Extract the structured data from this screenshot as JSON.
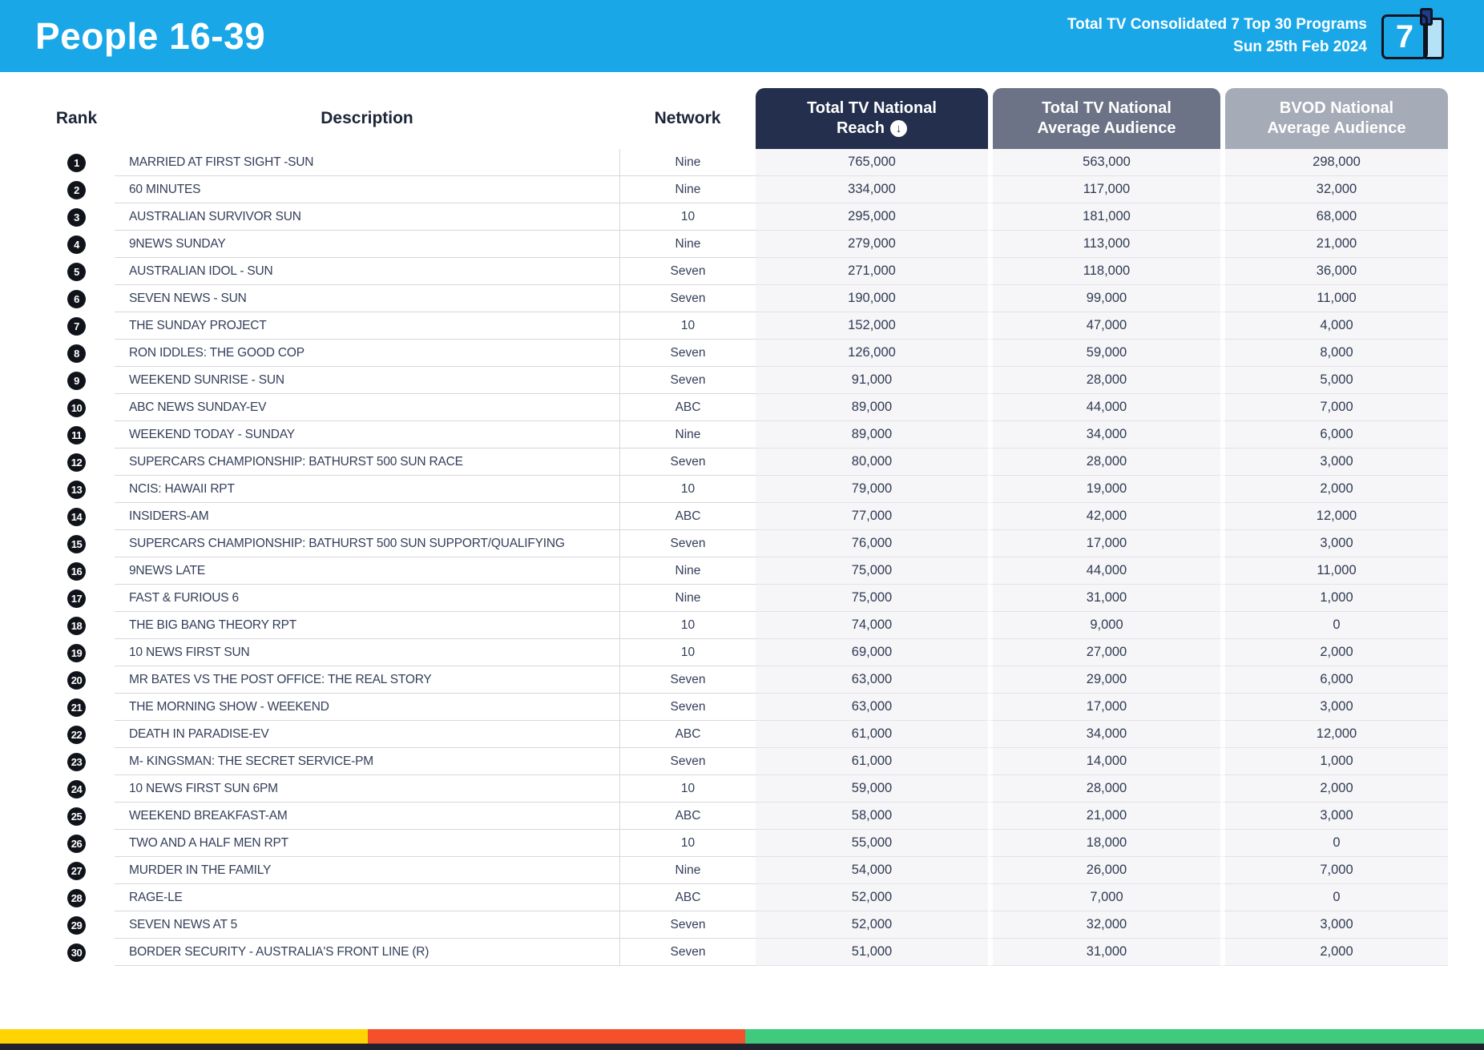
{
  "header": {
    "title": "People 16-39",
    "subtitle_line1": "Total TV Consolidated 7 Top 30 Programs",
    "subtitle_line2": "Sun 25th Feb 2024",
    "logo_number": "7",
    "banner_color": "#1AA7E8"
  },
  "table": {
    "column_labels": {
      "rank": "Rank",
      "description": "Description",
      "network": "Network"
    },
    "metric_headers": {
      "reach": {
        "line1": "Total TV National",
        "line2": "Reach",
        "color": "#242F4E",
        "sort_icon": "arrow-down-circle"
      },
      "avg": {
        "line1": "Total TV National",
        "line2": "Average Audience",
        "color": "#6C7386"
      },
      "bvod": {
        "line1": "BVOD National",
        "line2": "Average Audience",
        "color": "#A6ABB8"
      }
    },
    "rows": [
      {
        "rank": "1",
        "description": "MARRIED AT FIRST SIGHT -SUN",
        "network": "Nine",
        "reach": "765,000",
        "avg_audience": "563,000",
        "bvod": "298,000"
      },
      {
        "rank": "2",
        "description": "60 MINUTES",
        "network": "Nine",
        "reach": "334,000",
        "avg_audience": "117,000",
        "bvod": "32,000"
      },
      {
        "rank": "3",
        "description": "AUSTRALIAN SURVIVOR SUN",
        "network": "10",
        "reach": "295,000",
        "avg_audience": "181,000",
        "bvod": "68,000"
      },
      {
        "rank": "4",
        "description": "9NEWS SUNDAY",
        "network": "Nine",
        "reach": "279,000",
        "avg_audience": "113,000",
        "bvod": "21,000"
      },
      {
        "rank": "5",
        "description": "AUSTRALIAN IDOL - SUN",
        "network": "Seven",
        "reach": "271,000",
        "avg_audience": "118,000",
        "bvod": "36,000"
      },
      {
        "rank": "6",
        "description": "SEVEN NEWS - SUN",
        "network": "Seven",
        "reach": "190,000",
        "avg_audience": "99,000",
        "bvod": "11,000"
      },
      {
        "rank": "7",
        "description": "THE SUNDAY PROJECT",
        "network": "10",
        "reach": "152,000",
        "avg_audience": "47,000",
        "bvod": "4,000"
      },
      {
        "rank": "8",
        "description": "RON IDDLES: THE GOOD COP",
        "network": "Seven",
        "reach": "126,000",
        "avg_audience": "59,000",
        "bvod": "8,000"
      },
      {
        "rank": "9",
        "description": "WEEKEND SUNRISE - SUN",
        "network": "Seven",
        "reach": "91,000",
        "avg_audience": "28,000",
        "bvod": "5,000"
      },
      {
        "rank": "10",
        "description": "ABC NEWS SUNDAY-EV",
        "network": "ABC",
        "reach": "89,000",
        "avg_audience": "44,000",
        "bvod": "7,000"
      },
      {
        "rank": "11",
        "description": "WEEKEND TODAY - SUNDAY",
        "network": "Nine",
        "reach": "89,000",
        "avg_audience": "34,000",
        "bvod": "6,000"
      },
      {
        "rank": "12",
        "description": "SUPERCARS CHAMPIONSHIP: BATHURST 500 SUN RACE",
        "network": "Seven",
        "reach": "80,000",
        "avg_audience": "28,000",
        "bvod": "3,000"
      },
      {
        "rank": "13",
        "description": "NCIS: HAWAII RPT",
        "network": "10",
        "reach": "79,000",
        "avg_audience": "19,000",
        "bvod": "2,000"
      },
      {
        "rank": "14",
        "description": "INSIDERS-AM",
        "network": "ABC",
        "reach": "77,000",
        "avg_audience": "42,000",
        "bvod": "12,000"
      },
      {
        "rank": "15",
        "description": "SUPERCARS CHAMPIONSHIP: BATHURST 500 SUN SUPPORT/QUALIFYING",
        "network": "Seven",
        "reach": "76,000",
        "avg_audience": "17,000",
        "bvod": "3,000"
      },
      {
        "rank": "16",
        "description": "9NEWS LATE",
        "network": "Nine",
        "reach": "75,000",
        "avg_audience": "44,000",
        "bvod": "11,000"
      },
      {
        "rank": "17",
        "description": "FAST & FURIOUS 6",
        "network": "Nine",
        "reach": "75,000",
        "avg_audience": "31,000",
        "bvod": "1,000"
      },
      {
        "rank": "18",
        "description": "THE BIG BANG THEORY RPT",
        "network": "10",
        "reach": "74,000",
        "avg_audience": "9,000",
        "bvod": "0"
      },
      {
        "rank": "19",
        "description": "10 NEWS FIRST SUN",
        "network": "10",
        "reach": "69,000",
        "avg_audience": "27,000",
        "bvod": "2,000"
      },
      {
        "rank": "20",
        "description": "MR BATES VS THE POST OFFICE: THE REAL STORY",
        "network": "Seven",
        "reach": "63,000",
        "avg_audience": "29,000",
        "bvod": "6,000"
      },
      {
        "rank": "21",
        "description": "THE MORNING SHOW - WEEKEND",
        "network": "Seven",
        "reach": "63,000",
        "avg_audience": "17,000",
        "bvod": "3,000"
      },
      {
        "rank": "22",
        "description": "DEATH IN PARADISE-EV",
        "network": "ABC",
        "reach": "61,000",
        "avg_audience": "34,000",
        "bvod": "12,000"
      },
      {
        "rank": "23",
        "description": "M- KINGSMAN: THE SECRET SERVICE-PM",
        "network": "Seven",
        "reach": "61,000",
        "avg_audience": "14,000",
        "bvod": "1,000"
      },
      {
        "rank": "24",
        "description": "10 NEWS FIRST SUN 6PM",
        "network": "10",
        "reach": "59,000",
        "avg_audience": "28,000",
        "bvod": "2,000"
      },
      {
        "rank": "25",
        "description": "WEEKEND BREAKFAST-AM",
        "network": "ABC",
        "reach": "58,000",
        "avg_audience": "21,000",
        "bvod": "3,000"
      },
      {
        "rank": "26",
        "description": "TWO AND A HALF MEN RPT",
        "network": "10",
        "reach": "55,000",
        "avg_audience": "18,000",
        "bvod": "0"
      },
      {
        "rank": "27",
        "description": "MURDER IN THE FAMILY",
        "network": "Nine",
        "reach": "54,000",
        "avg_audience": "26,000",
        "bvod": "7,000"
      },
      {
        "rank": "28",
        "description": "RAGE-LE",
        "network": "ABC",
        "reach": "52,000",
        "avg_audience": "7,000",
        "bvod": "0"
      },
      {
        "rank": "29",
        "description": "SEVEN NEWS AT 5",
        "network": "Seven",
        "reach": "52,000",
        "avg_audience": "32,000",
        "bvod": "3,000"
      },
      {
        "rank": "30",
        "description": "BORDER SECURITY - AUSTRALIA'S FRONT LINE (R)",
        "network": "Seven",
        "reach": "51,000",
        "avg_audience": "31,000",
        "bvod": "2,000"
      }
    ]
  },
  "footer": {
    "segments": [
      {
        "name": "yellow",
        "color": "#FFD402",
        "width": "24.8%"
      },
      {
        "name": "red",
        "color": "#F4502B",
        "width": "25.4%"
      },
      {
        "name": "green",
        "color": "#3FCA7D",
        "width": "49.8%"
      }
    ],
    "bottom_strip_color": "#20232E"
  }
}
